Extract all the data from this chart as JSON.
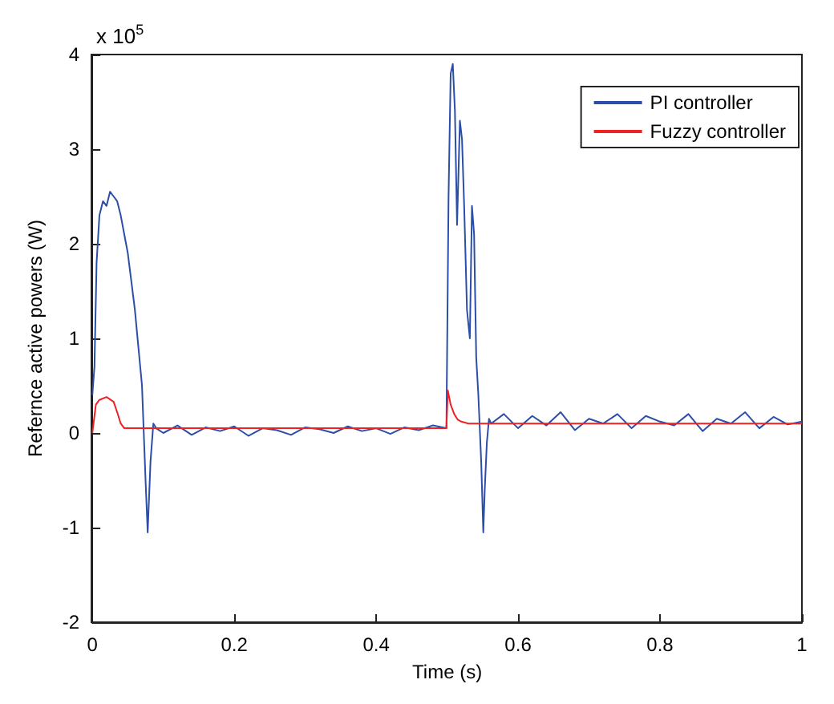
{
  "chart_data": {
    "type": "line",
    "xlabel": "Time (s)",
    "ylabel": "Refernce active powers (W)",
    "annotations": [
      "x 10$^{5}$"
    ],
    "xlim": [
      0,
      1
    ],
    "xticks": [
      0,
      0.2,
      0.4,
      0.6,
      0.8,
      1
    ],
    "ylim": [
      -2,
      4
    ],
    "yticks": [
      -2,
      -1,
      0,
      1,
      2,
      3,
      4
    ],
    "grid": false,
    "legend": "top right",
    "marker": "none",
    "line_style": "solid",
    "series": [
      {
        "name": "PI controller",
        "color": "#2b4ea8",
        "x": [
          0,
          0.003,
          0.006,
          0.01,
          0.015,
          0.02,
          0.025,
          0.03,
          0.035,
          0.04,
          0.045,
          0.05,
          0.055,
          0.06,
          0.065,
          0.07,
          0.075,
          0.078,
          0.082,
          0.086,
          0.09,
          0.1,
          0.12,
          0.14,
          0.16,
          0.18,
          0.2,
          0.22,
          0.24,
          0.26,
          0.28,
          0.3,
          0.32,
          0.34,
          0.36,
          0.38,
          0.4,
          0.42,
          0.44,
          0.46,
          0.48,
          0.499,
          0.502,
          0.505,
          0.508,
          0.511,
          0.514,
          0.518,
          0.521,
          0.524,
          0.528,
          0.532,
          0.535,
          0.538,
          0.541,
          0.544,
          0.548,
          0.551,
          0.553,
          0.556,
          0.559,
          0.562,
          0.58,
          0.6,
          0.62,
          0.64,
          0.66,
          0.68,
          0.7,
          0.72,
          0.74,
          0.76,
          0.78,
          0.8,
          0.82,
          0.84,
          0.86,
          0.88,
          0.9,
          0.92,
          0.94,
          0.96,
          0.98,
          1
        ],
        "values": [
          0.4,
          0.7,
          1.8,
          2.3,
          2.45,
          2.4,
          2.55,
          2.5,
          2.45,
          2.3,
          2.1,
          1.9,
          1.6,
          1.3,
          0.9,
          0.5,
          -0.5,
          -1.05,
          -0.3,
          0.1,
          0.05,
          0.0,
          0.08,
          -0.02,
          0.06,
          0.02,
          0.07,
          -0.03,
          0.05,
          0.03,
          -0.02,
          0.06,
          0.04,
          0.0,
          0.07,
          0.02,
          0.05,
          -0.01,
          0.06,
          0.03,
          0.08,
          0.05,
          2.5,
          3.8,
          3.9,
          3.4,
          2.2,
          3.3,
          3.1,
          2.4,
          1.3,
          1.0,
          2.4,
          2.1,
          0.8,
          0.4,
          -0.3,
          -1.05,
          -0.6,
          -0.1,
          0.15,
          0.1,
          0.2,
          0.05,
          0.18,
          0.08,
          0.22,
          0.03,
          0.15,
          0.1,
          0.2,
          0.05,
          0.18,
          0.12,
          0.08,
          0.2,
          0.02,
          0.15,
          0.1,
          0.22,
          0.05,
          0.17,
          0.09,
          0.12
        ]
      },
      {
        "name": "Fuzzy controller",
        "color": "#ee2222",
        "x": [
          0,
          0.005,
          0.01,
          0.02,
          0.03,
          0.035,
          0.04,
          0.045,
          0.1,
          0.2,
          0.3,
          0.4,
          0.499,
          0.501,
          0.505,
          0.51,
          0.515,
          0.52,
          0.53,
          0.55,
          0.6,
          0.7,
          0.8,
          0.9,
          1
        ],
        "values": [
          0,
          0.3,
          0.35,
          0.38,
          0.33,
          0.22,
          0.1,
          0.05,
          0.05,
          0.05,
          0.05,
          0.05,
          0.05,
          0.45,
          0.3,
          0.2,
          0.14,
          0.12,
          0.1,
          0.1,
          0.1,
          0.1,
          0.1,
          0.1,
          0.1
        ]
      }
    ]
  }
}
